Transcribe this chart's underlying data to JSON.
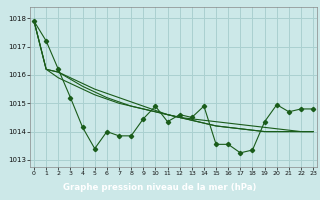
{
  "title": "Graphe pression niveau de la mer (hPa)",
  "background_color": "#cce8e8",
  "grid_color": "#aad0d0",
  "line_color": "#1a5c1a",
  "label_bg": "#2d6e2d",
  "label_fg": "#ffffff",
  "x_values": [
    0,
    1,
    2,
    3,
    4,
    5,
    6,
    7,
    8,
    9,
    10,
    11,
    12,
    13,
    14,
    15,
    16,
    17,
    18,
    19,
    20,
    21,
    22,
    23
  ],
  "jagged": [
    1017.9,
    1017.2,
    1016.2,
    1015.2,
    1014.15,
    1013.4,
    1014.0,
    1013.85,
    1013.85,
    1014.45,
    1014.9,
    1014.35,
    1014.6,
    1014.5,
    1014.9,
    1013.55,
    1013.55,
    1013.25,
    1013.35,
    1014.35,
    1014.95,
    1014.7,
    1014.8,
    1014.8
  ],
  "line1": [
    1017.9,
    1016.2,
    1015.9,
    1015.7,
    1015.5,
    1015.3,
    1015.15,
    1015.0,
    1014.9,
    1014.8,
    1014.7,
    1014.6,
    1014.5,
    1014.45,
    1014.4,
    1014.35,
    1014.3,
    1014.25,
    1014.2,
    1014.15,
    1014.1,
    1014.05,
    1014.0,
    1014.0
  ],
  "line2": [
    1017.9,
    1016.2,
    1016.1,
    1015.85,
    1015.6,
    1015.4,
    1015.2,
    1015.05,
    1014.9,
    1014.8,
    1014.7,
    1014.6,
    1014.5,
    1014.4,
    1014.3,
    1014.2,
    1014.15,
    1014.1,
    1014.05,
    1014.0,
    1014.0,
    1014.0,
    1014.0,
    1014.0
  ],
  "line3": [
    1017.9,
    1016.2,
    1016.1,
    1015.9,
    1015.7,
    1015.5,
    1015.35,
    1015.2,
    1015.05,
    1014.9,
    1014.75,
    1014.6,
    1014.5,
    1014.4,
    1014.3,
    1014.2,
    1014.15,
    1014.1,
    1014.05,
    1014.0,
    1014.0,
    1014.0,
    1014.0,
    1014.0
  ],
  "ylim": [
    1012.75,
    1018.4
  ],
  "yticks": [
    1013,
    1014,
    1015,
    1016,
    1017,
    1018
  ],
  "xticks": [
    0,
    1,
    2,
    3,
    4,
    5,
    6,
    7,
    8,
    9,
    10,
    11,
    12,
    13,
    14,
    15,
    16,
    17,
    18,
    19,
    20,
    21,
    22,
    23
  ]
}
